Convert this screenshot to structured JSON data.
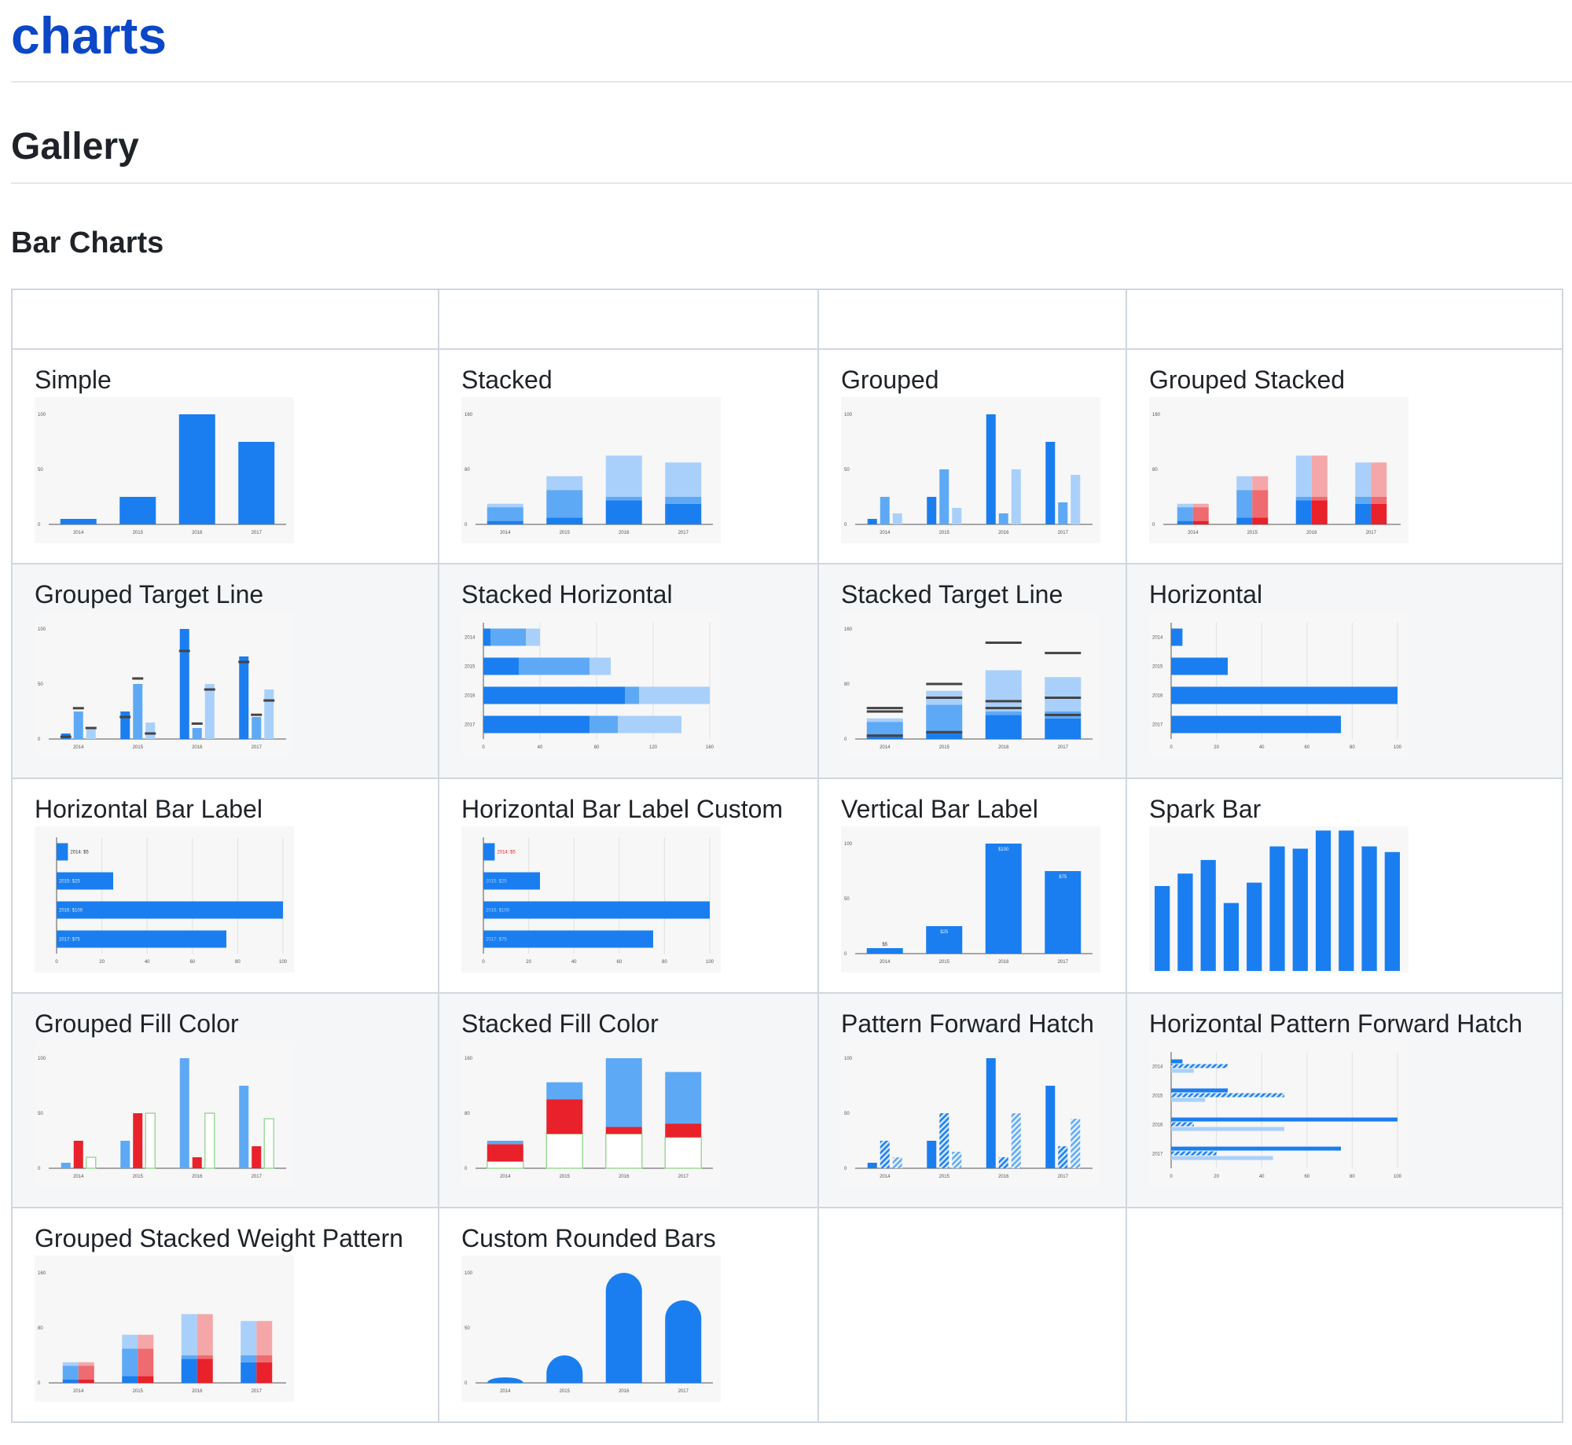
{
  "page": {
    "title": "charts",
    "section": "Gallery",
    "subsection": "Bar Charts"
  },
  "colors": {
    "blue": "#1a7ef0",
    "mid": "#5ea9f5",
    "light": "#a9d0fa",
    "red": "#e8212b",
    "pink": "#f5a6a8",
    "salmon": "#ee6b6f",
    "green": "#9ed89a",
    "line": "#444444"
  },
  "charts": [
    {
      "title": "Simple",
      "chart_data": {
        "type": "bar",
        "orientation": "vertical",
        "categories": [
          "2014",
          "2015",
          "2016",
          "2017"
        ],
        "series": [
          {
            "values": [
              5,
              25,
              100,
              75
            ]
          }
        ],
        "yticks": [
          "100",
          "50",
          "0"
        ],
        "ylim": [
          0,
          100
        ]
      }
    },
    {
      "title": "Stacked",
      "chart_data": {
        "type": "bar",
        "orientation": "vertical",
        "stacked": true,
        "categories": [
          "2014",
          "2015",
          "2016",
          "2017"
        ],
        "series": [
          {
            "values": [
              5,
              10,
              35,
              30
            ]
          },
          {
            "values": [
              20,
              40,
              5,
              10
            ]
          },
          {
            "values": [
              5,
              20,
              60,
              50
            ]
          }
        ],
        "yticks": [
          "160",
          "80",
          "0"
        ],
        "ylim": [
          0,
          160
        ]
      }
    },
    {
      "title": "Grouped",
      "chart_data": {
        "type": "bar",
        "orientation": "vertical",
        "categories": [
          "2014",
          "2015",
          "2016",
          "2017"
        ],
        "series": [
          {
            "values": [
              5,
              25,
              100,
              75
            ]
          },
          {
            "values": [
              25,
              50,
              10,
              20
            ]
          },
          {
            "values": [
              10,
              15,
              50,
              45
            ]
          }
        ],
        "yticks": [
          "100",
          "50",
          "0"
        ],
        "ylim": [
          0,
          100
        ]
      }
    },
    {
      "title": "Grouped Stacked",
      "chart_data": {
        "type": "bar",
        "orientation": "vertical",
        "stacked": true,
        "categories": [
          "2014",
          "2015",
          "2016",
          "2017"
        ],
        "series": [
          {
            "values": [
              5,
              10,
              35,
              30
            ]
          },
          {
            "values": [
              20,
              40,
              5,
              10
            ]
          },
          {
            "values": [
              5,
              20,
              60,
              50
            ]
          }
        ],
        "series_b": [
          {
            "values": [
              5,
              10,
              35,
              30
            ]
          },
          {
            "values": [
              20,
              40,
              5,
              10
            ]
          },
          {
            "values": [
              5,
              20,
              60,
              50
            ]
          }
        ],
        "yticks": [
          "160",
          "80",
          "0"
        ],
        "ylim": [
          0,
          160
        ]
      }
    },
    {
      "title": "Grouped Target Line",
      "chart_data": {
        "type": "bar",
        "orientation": "vertical",
        "categories": [
          "2014",
          "2015",
          "2016",
          "2017"
        ],
        "series": [
          {
            "values": [
              5,
              25,
              100,
              75
            ]
          },
          {
            "values": [
              25,
              50,
              10,
              20
            ]
          },
          {
            "values": [
              10,
              15,
              50,
              45
            ]
          }
        ],
        "targets": [
          [
            2,
            20,
            80,
            70
          ],
          [
            28,
            55,
            14,
            22
          ],
          [
            10,
            5,
            45,
            35
          ]
        ],
        "yticks": [
          "100",
          "50",
          "0"
        ],
        "ylim": [
          0,
          100
        ]
      }
    },
    {
      "title": "Stacked Horizontal",
      "chart_data": {
        "type": "bar",
        "orientation": "horizontal",
        "stacked": true,
        "categories": [
          "2014",
          "2015",
          "2016",
          "2017"
        ],
        "series": [
          {
            "values": [
              5,
              25,
              100,
              75
            ]
          },
          {
            "values": [
              25,
              50,
              10,
              20
            ]
          },
          {
            "values": [
              10,
              15,
              50,
              45
            ]
          }
        ],
        "xticks": [
          "0",
          "40",
          "80",
          "120",
          "160"
        ],
        "xlim": [
          0,
          160
        ]
      }
    },
    {
      "title": "Stacked Target Line",
      "chart_data": {
        "type": "bar",
        "orientation": "vertical",
        "stacked": true,
        "categories": [
          "2014",
          "2015",
          "2016",
          "2017"
        ],
        "series": [
          {
            "values": [
              5,
              10,
              35,
              30
            ]
          },
          {
            "values": [
              20,
              40,
              5,
              10
            ]
          },
          {
            "values": [
              5,
              20,
              60,
              50
            ]
          }
        ],
        "targets": [
          [
            5,
            10,
            45,
            35
          ],
          [
            40,
            60,
            55,
            60
          ],
          [
            45,
            80,
            140,
            125
          ]
        ],
        "yticks": [
          "160",
          "80",
          "0"
        ],
        "ylim": [
          0,
          160
        ]
      }
    },
    {
      "title": "Horizontal",
      "chart_data": {
        "type": "bar",
        "orientation": "horizontal",
        "categories": [
          "2014",
          "2015",
          "2016",
          "2017"
        ],
        "series": [
          {
            "values": [
              5,
              25,
              100,
              75
            ]
          }
        ],
        "xticks": [
          "0",
          "20",
          "40",
          "60",
          "80",
          "100"
        ],
        "xlim": [
          0,
          100
        ]
      }
    },
    {
      "title": "Horizontal Bar Label",
      "chart_data": {
        "type": "bar",
        "orientation": "horizontal",
        "categories": [
          "2014",
          "2015",
          "2016",
          "2017"
        ],
        "series": [
          {
            "values": [
              5,
              25,
              100,
              75
            ]
          }
        ],
        "labels": [
          "2014: $5",
          "2015: $25",
          "2016: $100",
          "2017: $75"
        ],
        "xticks": [
          "0",
          "20",
          "40",
          "60",
          "80",
          "100"
        ],
        "xlim": [
          0,
          100
        ]
      }
    },
    {
      "title": "Horizontal Bar Label Custom",
      "chart_data": {
        "type": "bar",
        "orientation": "horizontal",
        "categories": [
          "2014",
          "2015",
          "2016",
          "2017"
        ],
        "series": [
          {
            "values": [
              5,
              25,
              100,
              75
            ]
          }
        ],
        "labels": [
          "2014: $5",
          "2015: $25",
          "2016: $100",
          "2017: $75"
        ],
        "xticks": [
          "0",
          "20",
          "40",
          "60",
          "80",
          "100"
        ],
        "xlim": [
          0,
          100
        ]
      }
    },
    {
      "title": "Vertical Bar Label",
      "chart_data": {
        "type": "bar",
        "orientation": "vertical",
        "categories": [
          "2014",
          "2015",
          "2016",
          "2017"
        ],
        "series": [
          {
            "values": [
              5,
              25,
              100,
              75
            ]
          }
        ],
        "labels": [
          "$5",
          "$25",
          "$100",
          "$75"
        ],
        "yticks": [
          "100",
          "50",
          "0"
        ],
        "ylim": [
          0,
          100
        ]
      }
    },
    {
      "title": "Spark Bar",
      "chart_data": {
        "type": "bar",
        "orientation": "vertical",
        "spark": true,
        "series": [
          {
            "values": [
              75,
              86,
              98,
              60,
              78,
              110,
              108,
              124,
              124,
              110,
              105
            ]
          }
        ],
        "ylim": [
          0,
          125
        ]
      }
    },
    {
      "title": "Grouped Fill Color",
      "chart_data": {
        "type": "bar",
        "orientation": "vertical",
        "categories": [
          "2014",
          "2015",
          "2016",
          "2017"
        ],
        "series": [
          {
            "values": [
              5,
              25,
              100,
              75
            ]
          },
          {
            "values": [
              25,
              50,
              10,
              20
            ]
          },
          {
            "values": [
              10,
              50,
              50,
              45
            ]
          }
        ],
        "yticks": [
          "100",
          "50",
          "0"
        ],
        "ylim": [
          0,
          100
        ]
      }
    },
    {
      "title": "Stacked Fill Color",
      "chart_data": {
        "type": "bar",
        "orientation": "vertical",
        "stacked": true,
        "categories": [
          "2014",
          "2015",
          "2016",
          "2017"
        ],
        "series": [
          {
            "values": [
              10,
              50,
              50,
              45
            ]
          },
          {
            "values": [
              25,
              50,
              10,
              20
            ]
          },
          {
            "values": [
              5,
              25,
              100,
              75
            ]
          }
        ],
        "yticks": [
          "160",
          "80",
          "0"
        ],
        "ylim": [
          0,
          160
        ]
      }
    },
    {
      "title": "Pattern Forward Hatch",
      "chart_data": {
        "type": "bar",
        "orientation": "vertical",
        "categories": [
          "2014",
          "2015",
          "2016",
          "2017"
        ],
        "series": [
          {
            "values": [
              5,
              25,
              100,
              75
            ]
          },
          {
            "values": [
              25,
              50,
              10,
              20
            ]
          },
          {
            "values": [
              10,
              15,
              50,
              45
            ]
          }
        ],
        "yticks": [
          "100",
          "50",
          "0"
        ],
        "ylim": [
          0,
          100
        ]
      }
    },
    {
      "title": "Horizontal Pattern Forward Hatch",
      "chart_data": {
        "type": "bar",
        "orientation": "horizontal",
        "categories": [
          "2014",
          "2015",
          "2016",
          "2017"
        ],
        "series": [
          {
            "values": [
              5,
              25,
              100,
              75
            ]
          },
          {
            "values": [
              25,
              50,
              10,
              20
            ]
          },
          {
            "values": [
              10,
              15,
              50,
              45
            ]
          }
        ],
        "xticks": [
          "0",
          "20",
          "40",
          "60",
          "80",
          "100"
        ],
        "xlim": [
          0,
          100
        ]
      }
    },
    {
      "title": "Grouped Stacked Weight Pattern",
      "chart_data": {
        "type": "bar",
        "orientation": "vertical",
        "stacked": true,
        "categories": [
          "2014",
          "2015",
          "2016",
          "2017"
        ],
        "series": [
          {
            "values": [
              5,
              10,
              35,
              30
            ]
          },
          {
            "values": [
              20,
              40,
              5,
              10
            ]
          },
          {
            "values": [
              5,
              20,
              60,
              50
            ]
          }
        ],
        "series_b": [
          {
            "values": [
              5,
              10,
              35,
              30
            ]
          },
          {
            "values": [
              20,
              40,
              5,
              10
            ]
          },
          {
            "values": [
              5,
              20,
              60,
              50
            ]
          }
        ],
        "yticks": [
          "160",
          "80",
          "0"
        ],
        "ylim": [
          0,
          160
        ]
      }
    },
    {
      "title": "Custom Rounded Bars",
      "chart_data": {
        "type": "bar",
        "orientation": "vertical",
        "rounded": true,
        "categories": [
          "2014",
          "2015",
          "2016",
          "2017"
        ],
        "series": [
          {
            "values": [
              5,
              25,
              100,
              75
            ]
          }
        ],
        "yticks": [
          "100",
          "50",
          "0"
        ],
        "ylim": [
          0,
          100
        ]
      }
    }
  ]
}
